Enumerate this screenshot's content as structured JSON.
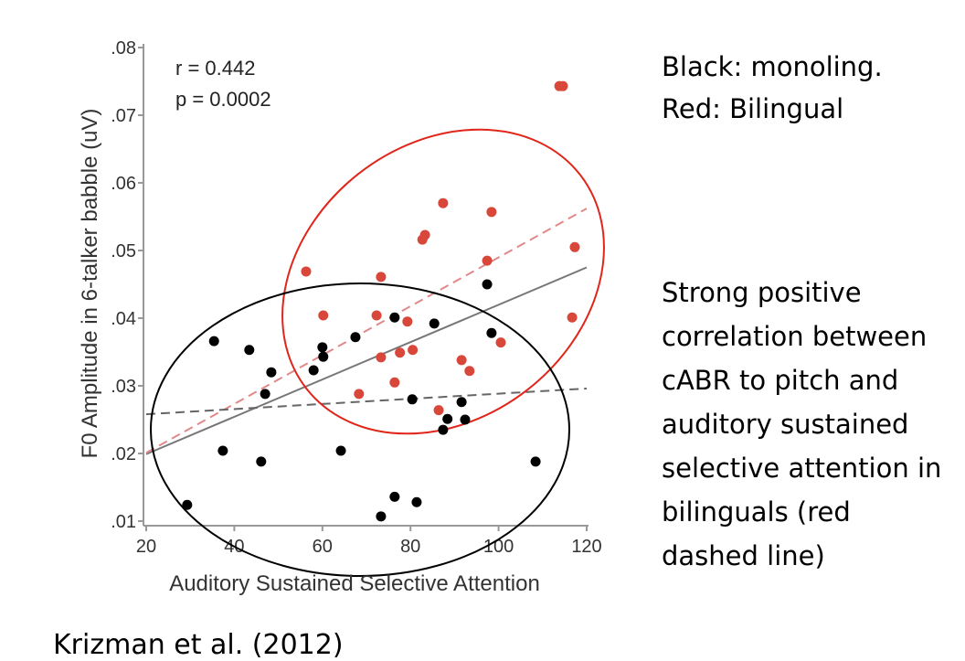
{
  "chart_data": {
    "type": "scatter",
    "xlabel": "Auditory Sustained Selective Attention",
    "ylabel": "F0 Amplitude in 6-talker babble (uV)",
    "xlim": [
      20,
      120
    ],
    "ylim": [
      0.01,
      0.08
    ],
    "x_ticks": [
      "20",
      "40",
      "60",
      "80",
      "100",
      "120"
    ],
    "y_ticks": [
      ".01",
      ".02",
      ".03",
      ".04",
      ".05",
      ".06",
      ".07",
      ".08"
    ],
    "grid": false,
    "annotations": [
      "r = 0.442",
      "p = 0.0002"
    ],
    "series": [
      {
        "color": "#000000",
        "points": [
          [
            29.3,
            0.0124
          ],
          [
            35.4,
            0.0366
          ],
          [
            37.4,
            0.0204
          ],
          [
            43.4,
            0.0353
          ],
          [
            46.1,
            0.0188
          ],
          [
            47.0,
            0.0288
          ],
          [
            48.4,
            0.032
          ],
          [
            58.0,
            0.0323
          ],
          [
            60.0,
            0.0357
          ],
          [
            60.2,
            0.0343
          ],
          [
            64.2,
            0.0204
          ],
          [
            67.5,
            0.0372
          ],
          [
            73.3,
            0.0107
          ],
          [
            76.4,
            0.0136
          ],
          [
            76.4,
            0.0401
          ],
          [
            81.4,
            0.0128
          ],
          [
            80.4,
            0.028
          ],
          [
            85.4,
            0.0392
          ],
          [
            87.4,
            0.0235
          ],
          [
            88.4,
            0.0251
          ],
          [
            91.6,
            0.0276
          ],
          [
            92.4,
            0.025
          ],
          [
            97.4,
            0.045
          ],
          [
            98.4,
            0.0378
          ],
          [
            108.4,
            0.0188
          ]
        ]
      },
      {
        "color": "#d9463a",
        "points": [
          [
            56.3,
            0.0469
          ],
          [
            60.2,
            0.0404
          ],
          [
            68.3,
            0.0288
          ],
          [
            73.3,
            0.0461
          ],
          [
            72.3,
            0.0404
          ],
          [
            73.3,
            0.0342
          ],
          [
            76.4,
            0.0305
          ],
          [
            77.6,
            0.0349
          ],
          [
            79.3,
            0.0395
          ],
          [
            80.5,
            0.0353
          ],
          [
            82.7,
            0.0516
          ],
          [
            83.3,
            0.0523
          ],
          [
            87.4,
            0.057
          ],
          [
            86.4,
            0.0264
          ],
          [
            91.6,
            0.0338
          ],
          [
            93.4,
            0.0322
          ],
          [
            97.4,
            0.0485
          ],
          [
            98.4,
            0.0557
          ],
          [
            100.5,
            0.0364
          ],
          [
            116.7,
            0.0401
          ],
          [
            117.3,
            0.0505
          ],
          [
            113.8,
            0.0743
          ],
          [
            114.6,
            0.0743
          ]
        ]
      }
    ],
    "fit_lines": [
      {
        "style": "solid",
        "color": "#777777",
        "x": [
          20,
          120
        ],
        "y": [
          0.0199,
          0.0475
        ]
      },
      {
        "style": "dashed",
        "color": "#e0898a",
        "x": [
          20,
          120
        ],
        "y": [
          0.0201,
          0.0562
        ]
      },
      {
        "style": "dashed",
        "color": "#666666",
        "x": [
          20,
          120
        ],
        "y": [
          0.0258,
          0.0296
        ]
      }
    ]
  },
  "notes": {
    "legend_line1": "Black: monoling.",
    "legend_line2": "Red: Bilingual",
    "summary": "Strong positive correlation between cABR to pitch and auditory sustained selective attention in bilinguals (red dashed line)",
    "citation": "Krizman et al. (2012)"
  },
  "colors": {
    "black_group": "#000000",
    "red_group": "#d9463a",
    "red_ellipse": "#e0261b",
    "black_ellipse": "#000000"
  }
}
